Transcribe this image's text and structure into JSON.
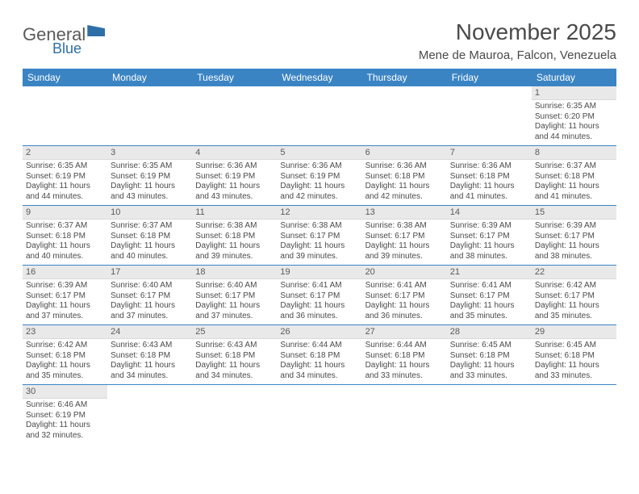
{
  "logo": {
    "general": "General",
    "blue": "Blue"
  },
  "title": "November 2025",
  "location": "Mene de Mauroa, Falcon, Venezuela",
  "header_bg": "#3b84c4",
  "header_fg": "#ffffff",
  "daynum_bg": "#e9e9e9",
  "cell_border": "#3b84c4",
  "text_color": "#4a4a4a",
  "dayNames": [
    "Sunday",
    "Monday",
    "Tuesday",
    "Wednesday",
    "Thursday",
    "Friday",
    "Saturday"
  ],
  "weeks": [
    [
      null,
      null,
      null,
      null,
      null,
      null,
      {
        "n": "1",
        "sr": "6:35 AM",
        "ss": "6:20 PM",
        "dl": "11 hours and 44 minutes."
      }
    ],
    [
      {
        "n": "2",
        "sr": "6:35 AM",
        "ss": "6:19 PM",
        "dl": "11 hours and 44 minutes."
      },
      {
        "n": "3",
        "sr": "6:35 AM",
        "ss": "6:19 PM",
        "dl": "11 hours and 43 minutes."
      },
      {
        "n": "4",
        "sr": "6:36 AM",
        "ss": "6:19 PM",
        "dl": "11 hours and 43 minutes."
      },
      {
        "n": "5",
        "sr": "6:36 AM",
        "ss": "6:19 PM",
        "dl": "11 hours and 42 minutes."
      },
      {
        "n": "6",
        "sr": "6:36 AM",
        "ss": "6:18 PM",
        "dl": "11 hours and 42 minutes."
      },
      {
        "n": "7",
        "sr": "6:36 AM",
        "ss": "6:18 PM",
        "dl": "11 hours and 41 minutes."
      },
      {
        "n": "8",
        "sr": "6:37 AM",
        "ss": "6:18 PM",
        "dl": "11 hours and 41 minutes."
      }
    ],
    [
      {
        "n": "9",
        "sr": "6:37 AM",
        "ss": "6:18 PM",
        "dl": "11 hours and 40 minutes."
      },
      {
        "n": "10",
        "sr": "6:37 AM",
        "ss": "6:18 PM",
        "dl": "11 hours and 40 minutes."
      },
      {
        "n": "11",
        "sr": "6:38 AM",
        "ss": "6:18 PM",
        "dl": "11 hours and 39 minutes."
      },
      {
        "n": "12",
        "sr": "6:38 AM",
        "ss": "6:17 PM",
        "dl": "11 hours and 39 minutes."
      },
      {
        "n": "13",
        "sr": "6:38 AM",
        "ss": "6:17 PM",
        "dl": "11 hours and 39 minutes."
      },
      {
        "n": "14",
        "sr": "6:39 AM",
        "ss": "6:17 PM",
        "dl": "11 hours and 38 minutes."
      },
      {
        "n": "15",
        "sr": "6:39 AM",
        "ss": "6:17 PM",
        "dl": "11 hours and 38 minutes."
      }
    ],
    [
      {
        "n": "16",
        "sr": "6:39 AM",
        "ss": "6:17 PM",
        "dl": "11 hours and 37 minutes."
      },
      {
        "n": "17",
        "sr": "6:40 AM",
        "ss": "6:17 PM",
        "dl": "11 hours and 37 minutes."
      },
      {
        "n": "18",
        "sr": "6:40 AM",
        "ss": "6:17 PM",
        "dl": "11 hours and 37 minutes."
      },
      {
        "n": "19",
        "sr": "6:41 AM",
        "ss": "6:17 PM",
        "dl": "11 hours and 36 minutes."
      },
      {
        "n": "20",
        "sr": "6:41 AM",
        "ss": "6:17 PM",
        "dl": "11 hours and 36 minutes."
      },
      {
        "n": "21",
        "sr": "6:41 AM",
        "ss": "6:17 PM",
        "dl": "11 hours and 35 minutes."
      },
      {
        "n": "22",
        "sr": "6:42 AM",
        "ss": "6:17 PM",
        "dl": "11 hours and 35 minutes."
      }
    ],
    [
      {
        "n": "23",
        "sr": "6:42 AM",
        "ss": "6:18 PM",
        "dl": "11 hours and 35 minutes."
      },
      {
        "n": "24",
        "sr": "6:43 AM",
        "ss": "6:18 PM",
        "dl": "11 hours and 34 minutes."
      },
      {
        "n": "25",
        "sr": "6:43 AM",
        "ss": "6:18 PM",
        "dl": "11 hours and 34 minutes."
      },
      {
        "n": "26",
        "sr": "6:44 AM",
        "ss": "6:18 PM",
        "dl": "11 hours and 34 minutes."
      },
      {
        "n": "27",
        "sr": "6:44 AM",
        "ss": "6:18 PM",
        "dl": "11 hours and 33 minutes."
      },
      {
        "n": "28",
        "sr": "6:45 AM",
        "ss": "6:18 PM",
        "dl": "11 hours and 33 minutes."
      },
      {
        "n": "29",
        "sr": "6:45 AM",
        "ss": "6:18 PM",
        "dl": "11 hours and 33 minutes."
      }
    ],
    [
      {
        "n": "30",
        "sr": "6:46 AM",
        "ss": "6:19 PM",
        "dl": "11 hours and 32 minutes."
      },
      null,
      null,
      null,
      null,
      null,
      null
    ]
  ],
  "labels": {
    "sunrise": "Sunrise:",
    "sunset": "Sunset:",
    "daylight": "Daylight:"
  }
}
